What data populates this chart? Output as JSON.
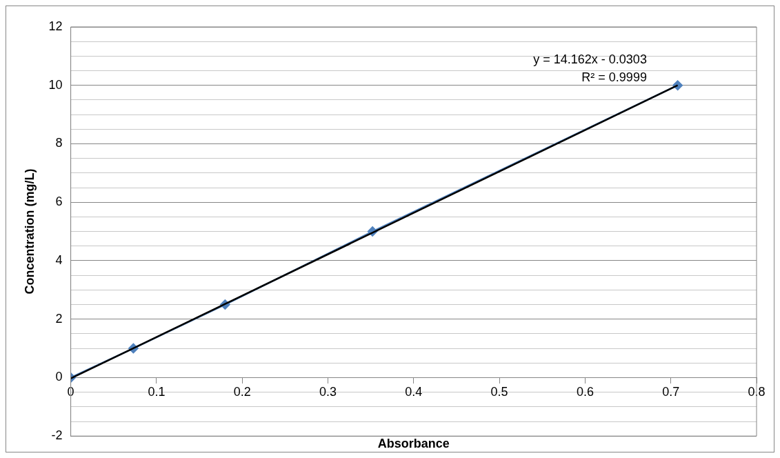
{
  "chart_data": {
    "type": "scatter",
    "xlabel": "Absorbance",
    "ylabel": "Concentration (mg/L)",
    "xlim": [
      0,
      0.8
    ],
    "xticks": [
      0,
      0.1,
      0.2,
      0.3,
      0.4,
      0.5,
      0.6,
      0.7,
      0.8
    ],
    "ylim": [
      -2,
      12
    ],
    "yticks": [
      -2,
      {
        "value": -1.5,
        "label": null
      },
      {
        "value": -1,
        "label": null
      },
      {
        "value": -0.5,
        "label": null
      },
      0,
      {
        "value": 0.5,
        "label": null
      },
      {
        "value": 1,
        "label": null
      },
      {
        "value": 1.5,
        "label": null
      },
      2,
      {
        "value": 2.5,
        "label": null
      },
      {
        "value": 3,
        "label": null
      },
      {
        "value": 3.5,
        "label": null
      },
      4,
      {
        "value": 4.5,
        "label": null
      },
      {
        "value": 5,
        "label": null
      },
      {
        "value": 5.5,
        "label": null
      },
      6,
      {
        "value": 6.5,
        "label": null
      },
      {
        "value": 7,
        "label": null
      },
      {
        "value": 7.5,
        "label": null
      },
      8,
      {
        "value": 8.5,
        "label": null
      },
      {
        "value": 9,
        "label": null
      },
      {
        "value": 9.5,
        "label": null
      },
      10,
      {
        "value": 10.5,
        "label": null
      },
      {
        "value": 11,
        "label": null
      },
      {
        "value": 11.5,
        "label": null
      },
      12
    ],
    "grid": "y",
    "legend": false,
    "series": [
      {
        "type": "line",
        "color": "#4f81bd",
        "marker": "diamond",
        "x": [
          0,
          0.073,
          0.18,
          0.352,
          0.708
        ],
        "values": [
          0,
          1,
          2.5,
          5,
          10
        ]
      },
      {
        "type": "line",
        "color": "#000000",
        "marker": "none",
        "x": [
          0,
          0.708
        ],
        "values": [
          -0.03,
          10.0
        ]
      }
    ],
    "annotations": [
      "y = 14.162x - 0.0303",
      "R² = 0.9999"
    ]
  }
}
